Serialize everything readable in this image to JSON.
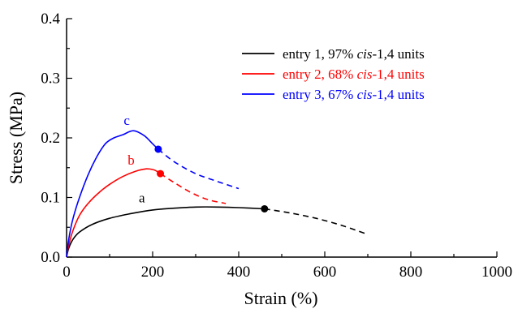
{
  "chart_data": {
    "type": "line",
    "xlabel": "Strain (%)",
    "ylabel": "Stress (MPa)",
    "xlim": [
      0,
      1000
    ],
    "ylim": [
      0.0,
      0.4
    ],
    "x_ticks": [
      0,
      200,
      400,
      600,
      800,
      1000
    ],
    "y_ticks": [
      0.0,
      0.1,
      0.2,
      0.3,
      0.4
    ],
    "x_tick_labels": [
      "0",
      "200",
      "400",
      "600",
      "800",
      "1000"
    ],
    "y_tick_labels": [
      "0.0",
      "0.1",
      "0.2",
      "0.3",
      "0.4"
    ],
    "grid": false,
    "legend_position": "top-right",
    "series": [
      {
        "name": "entry 1, 97% cis-1,4 units",
        "legend_parts": [
          "entry 1, 97% ",
          "cis",
          "-1,4 units"
        ],
        "label": "a",
        "color": "#000000",
        "break_point": [
          460,
          0.081
        ],
        "solid": [
          [
            0,
            0.0
          ],
          [
            5,
            0.015
          ],
          [
            15,
            0.03
          ],
          [
            30,
            0.042
          ],
          [
            60,
            0.055
          ],
          [
            100,
            0.065
          ],
          [
            150,
            0.073
          ],
          [
            200,
            0.079
          ],
          [
            250,
            0.082
          ],
          [
            300,
            0.084
          ],
          [
            350,
            0.084
          ],
          [
            400,
            0.083
          ],
          [
            460,
            0.081
          ]
        ],
        "dashed": [
          [
            460,
            0.081
          ],
          [
            520,
            0.074
          ],
          [
            580,
            0.065
          ],
          [
            640,
            0.053
          ],
          [
            700,
            0.038
          ]
        ]
      },
      {
        "name": "entry 2, 68% cis-1,4 units",
        "legend_parts": [
          "entry 2, 68% ",
          "cis",
          "-1,4 units"
        ],
        "label": "b",
        "color": "#ff0000",
        "break_point": [
          218,
          0.14
        ],
        "solid": [
          [
            0,
            0.0
          ],
          [
            5,
            0.02
          ],
          [
            15,
            0.045
          ],
          [
            30,
            0.07
          ],
          [
            50,
            0.09
          ],
          [
            75,
            0.108
          ],
          [
            100,
            0.122
          ],
          [
            130,
            0.135
          ],
          [
            160,
            0.144
          ],
          [
            185,
            0.148
          ],
          [
            200,
            0.147
          ],
          [
            210,
            0.144
          ],
          [
            218,
            0.14
          ]
        ],
        "dashed": [
          [
            218,
            0.14
          ],
          [
            250,
            0.125
          ],
          [
            290,
            0.108
          ],
          [
            330,
            0.096
          ],
          [
            370,
            0.09
          ]
        ]
      },
      {
        "name": "entry 3, 67% cis-1,4 units",
        "legend_parts": [
          "entry 3, 67% ",
          "cis",
          "-1,4 units"
        ],
        "label": "c",
        "color": "#0000ff",
        "break_point": [
          213,
          0.181
        ],
        "solid": [
          [
            0,
            0.0
          ],
          [
            5,
            0.03
          ],
          [
            15,
            0.065
          ],
          [
            30,
            0.1
          ],
          [
            50,
            0.138
          ],
          [
            70,
            0.168
          ],
          [
            90,
            0.19
          ],
          [
            110,
            0.2
          ],
          [
            130,
            0.205
          ],
          [
            155,
            0.212
          ],
          [
            180,
            0.204
          ],
          [
            200,
            0.19
          ],
          [
            213,
            0.181
          ]
        ],
        "dashed": [
          [
            213,
            0.181
          ],
          [
            250,
            0.16
          ],
          [
            300,
            0.14
          ],
          [
            350,
            0.127
          ],
          [
            400,
            0.115
          ]
        ]
      }
    ]
  }
}
